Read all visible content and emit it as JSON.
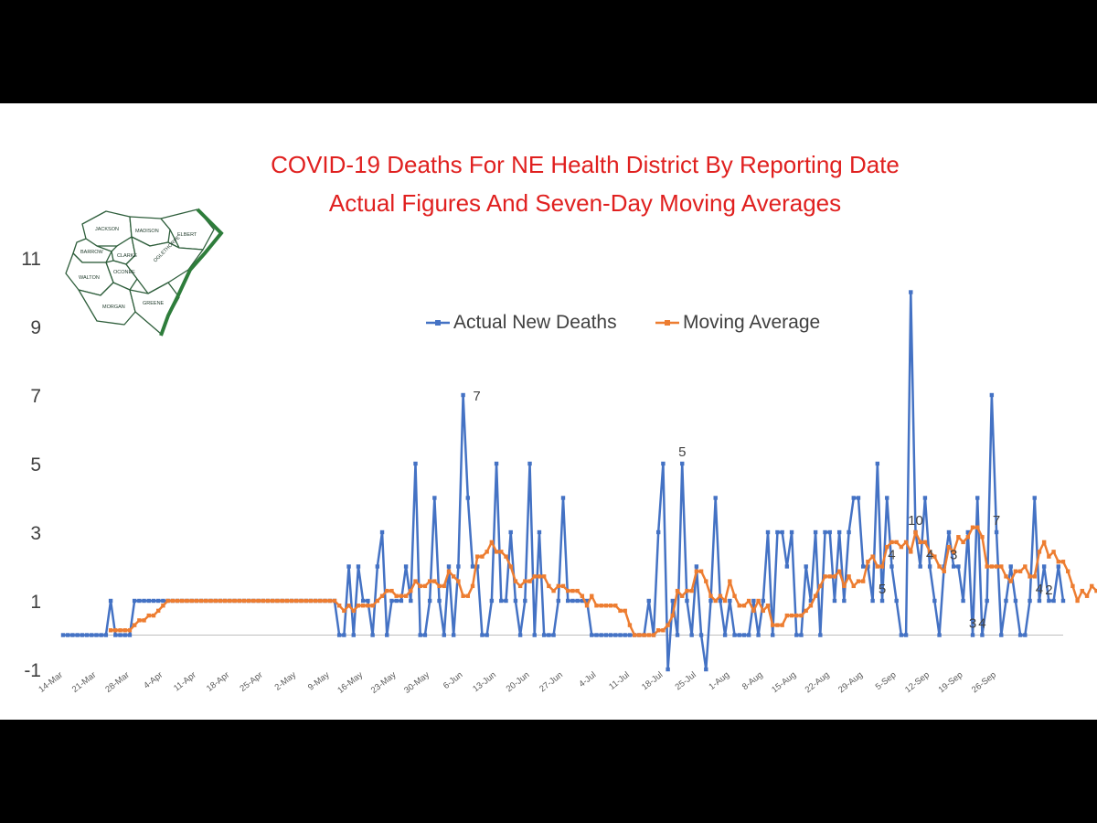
{
  "chart_data": {
    "type": "line",
    "title": "COVID-19 Deaths For NE Health District By Reporting Date",
    "subtitle": "Actual Figures And Seven-Day Moving Averages",
    "map_labels": [
      "JACKSON",
      "MADISON",
      "ELBERT",
      "BARROW",
      "CLARKE",
      "OCONEE",
      "OGLETHORPE",
      "WALTON",
      "MORGAN",
      "GREENE"
    ],
    "x_tick_labels": [
      "14-Mar",
      "21-Mar",
      "28-Mar",
      "4-Apr",
      "11-Apr",
      "18-Apr",
      "25-Apr",
      "2-May",
      "9-May",
      "16-May",
      "23-May",
      "30-May",
      "6-Jun",
      "13-Jun",
      "20-Jun",
      "27-Jun",
      "4-Jul",
      "11-Jul",
      "18-Jul",
      "25-Jul",
      "1-Aug",
      "8-Aug",
      "15-Aug",
      "22-Aug",
      "29-Aug",
      "5-Sep",
      "12-Sep",
      "19-Sep",
      "26-Sep"
    ],
    "y_ticks": [
      -1,
      1,
      3,
      5,
      7,
      9,
      11
    ],
    "ylim": [
      -1,
      11
    ],
    "x_start_date": "2020-03-14",
    "legend_position": "top-center",
    "series": [
      {
        "name": "Actual New Deaths",
        "color": "#4472c4",
        "values": [
          0,
          0,
          0,
          0,
          0,
          0,
          0,
          0,
          0,
          0,
          1,
          0,
          0,
          0,
          0,
          1,
          1,
          1,
          1,
          1,
          1,
          1,
          1,
          1,
          1,
          1,
          1,
          1,
          1,
          1,
          1,
          1,
          1,
          1,
          1,
          1,
          1,
          1,
          1,
          1,
          1,
          1,
          1,
          1,
          1,
          1,
          1,
          1,
          1,
          1,
          1,
          1,
          1,
          1,
          1,
          1,
          1,
          1,
          0,
          0,
          2,
          0,
          2,
          1,
          1,
          0,
          2,
          3,
          0,
          1,
          1,
          1,
          2,
          1,
          5,
          0,
          0,
          1,
          4,
          1,
          0,
          2,
          0,
          2,
          7,
          4,
          2,
          2,
          0,
          0,
          1,
          5,
          1,
          1,
          3,
          1,
          0,
          1,
          5,
          0,
          3,
          0,
          0,
          0,
          1,
          4,
          1,
          1,
          1,
          1,
          1,
          0,
          0,
          0,
          0,
          0,
          0,
          0,
          0,
          0,
          0,
          0,
          0,
          1,
          0,
          3,
          5,
          -1,
          1,
          0,
          5,
          1,
          0,
          2,
          0,
          -1,
          1,
          4,
          1,
          0,
          1,
          0,
          0,
          0,
          0,
          1,
          0,
          1,
          3,
          0,
          3,
          3,
          2,
          3,
          0,
          0,
          2,
          1,
          3,
          0,
          3,
          3,
          1,
          3,
          1,
          3,
          4,
          4,
          2,
          2,
          1,
          5,
          1,
          4,
          2,
          1,
          0,
          0,
          10,
          3,
          2,
          4,
          2,
          1,
          0,
          2,
          3,
          2,
          2,
          1,
          3,
          0,
          4,
          0,
          1,
          7,
          3,
          0,
          1,
          2,
          1,
          0,
          0,
          1,
          4,
          1,
          2,
          1,
          1,
          2,
          1
        ],
        "labels": [
          {
            "i": 84,
            "text": "7"
          },
          {
            "i": 130,
            "text": "5"
          },
          {
            "i": 172,
            "text": "5"
          },
          {
            "i": 174,
            "text": "4"
          },
          {
            "i": 179,
            "text": "10"
          },
          {
            "i": 182,
            "text": "4"
          },
          {
            "i": 187,
            "text": "3"
          },
          {
            "i": 191,
            "text": "3"
          },
          {
            "i": 193,
            "text": "4"
          },
          {
            "i": 196,
            "text": "7"
          },
          {
            "i": 205,
            "text": "4"
          },
          {
            "i": 207,
            "text": "2"
          }
        ]
      },
      {
        "name": "Moving Average",
        "color": "#ed7d31",
        "values": [
          null,
          null,
          null,
          null,
          null,
          null,
          null,
          null,
          null,
          null,
          0.14,
          0.14,
          0.14,
          0.14,
          0.14,
          0.29,
          0.43,
          0.43,
          0.57,
          0.57,
          0.71,
          0.86,
          1,
          1,
          1,
          1,
          1,
          1,
          1,
          1,
          1,
          1,
          1,
          1,
          1,
          1,
          1,
          1,
          1,
          1,
          1,
          1,
          1,
          1,
          1,
          1,
          1,
          1,
          1,
          1,
          1,
          1,
          1,
          1,
          1,
          1,
          1,
          1,
          0.86,
          0.71,
          0.86,
          0.71,
          0.86,
          0.86,
          0.86,
          0.86,
          1,
          1.14,
          1.29,
          1.29,
          1.14,
          1.14,
          1.14,
          1.29,
          1.57,
          1.43,
          1.43,
          1.57,
          1.57,
          1.43,
          1.43,
          1.86,
          1.71,
          1.57,
          1.14,
          1.14,
          1.43,
          2.29,
          2.29,
          2.43,
          2.71,
          2.43,
          2.43,
          2.29,
          2,
          1.57,
          1.43,
          1.57,
          1.57,
          1.71,
          1.71,
          1.71,
          1.43,
          1.29,
          1.43,
          1.43,
          1.29,
          1.29,
          1.29,
          1.14,
          0.86,
          1.14,
          0.86,
          0.86,
          0.86,
          0.86,
          0.86,
          0.71,
          0.71,
          0.29,
          0,
          0,
          0,
          0,
          0,
          0.14,
          0.14,
          0.29,
          0.57,
          1.29,
          1.14,
          1.29,
          1.29,
          1.86,
          1.86,
          1.57,
          1.14,
          1,
          1.14,
          1,
          1.57,
          1.14,
          0.86,
          0.86,
          1,
          0.71,
          1,
          0.71,
          0.86,
          0.29,
          0.29,
          0.29,
          0.57,
          0.57,
          0.57,
          0.57,
          0.71,
          0.86,
          1.14,
          1.43,
          1.71,
          1.71,
          1.71,
          1.86,
          1.43,
          1.71,
          1.43,
          1.57,
          1.57,
          2.14,
          2.29,
          2,
          2,
          2.57,
          2.71,
          2.71,
          2.57,
          2.71,
          2.43,
          3,
          2.71,
          2.71,
          2.43,
          2.29,
          2,
          1.86,
          2.57,
          2.43,
          2.86,
          2.71,
          2.86,
          3.14,
          3.14,
          2.86,
          2,
          2,
          2,
          2,
          1.71,
          1.57,
          1.86,
          1.86,
          2,
          1.71,
          1.71,
          2.43,
          2.71,
          2.29,
          2.43,
          2.14,
          2.14,
          1.86,
          1.43,
          1,
          1.29,
          1.14,
          1.43,
          1.29,
          1.43,
          1.71,
          1.57
        ]
      }
    ]
  }
}
